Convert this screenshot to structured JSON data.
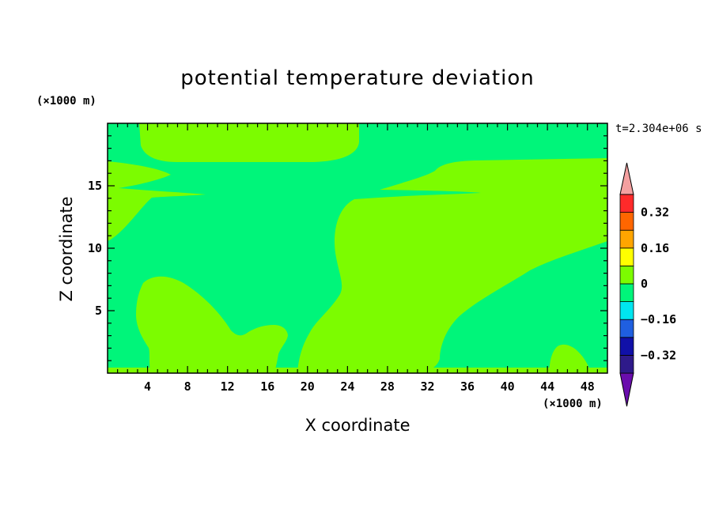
{
  "chart_data": {
    "type": "heatmap",
    "title": "potential temperature deviation",
    "xlabel": "X coordinate",
    "ylabel": "Z coordinate",
    "x_unit": "(×1000 m)",
    "y_unit": "(×1000 m)",
    "time_label": "t=2.304e+06 s",
    "xlim": [
      0,
      50
    ],
    "ylim": [
      0,
      20
    ],
    "x_ticks": [
      "4",
      "8",
      "12",
      "16",
      "20",
      "24",
      "28",
      "32",
      "36",
      "40",
      "44",
      "48"
    ],
    "y_ticks": [
      "5",
      "10",
      "15"
    ],
    "colorbar": {
      "levels": [
        -0.4,
        -0.32,
        -0.24,
        -0.16,
        -0.08,
        0,
        0.08,
        0.16,
        0.24,
        0.32,
        0.4
      ],
      "tick_labels": [
        "0.32",
        "0.16",
        "0",
        "−0.16",
        "−0.32"
      ],
      "tick_values": [
        0.32,
        0.16,
        0,
        -0.16,
        -0.32
      ],
      "colors": [
        "#6a0dad",
        "#2e1a8a",
        "#1010a8",
        "#1f5fe0",
        "#00e6f0",
        "#00f57a",
        "#7cfc00",
        "#ffff00",
        "#ffa500",
        "#ff6600",
        "#ff2a2a",
        "#f4a0a0"
      ]
    },
    "regions": [
      {
        "name": "background",
        "range": [
          -0.08,
          0
        ],
        "color": "#00f57a"
      },
      {
        "name": "top band",
        "range": [
          0,
          0.08
        ],
        "color": "#7cfc00"
      },
      {
        "name": "left upper tongue",
        "range": [
          0,
          0.08
        ],
        "color": "#7cfc00"
      },
      {
        "name": "central-right plume",
        "range": [
          0,
          0.08
        ],
        "color": "#7cfc00"
      },
      {
        "name": "lower-left lobe",
        "range": [
          0,
          0.08
        ],
        "color": "#7cfc00"
      },
      {
        "name": "lower-right small lobe",
        "range": [
          0,
          0.08
        ],
        "color": "#7cfc00"
      }
    ]
  }
}
